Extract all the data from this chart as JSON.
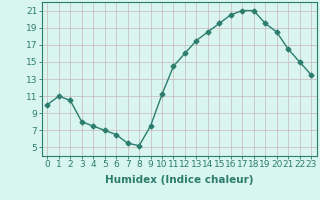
{
  "xlabel": "Humidex (Indice chaleur)",
  "x": [
    0,
    1,
    2,
    3,
    4,
    5,
    6,
    7,
    8,
    9,
    10,
    11,
    12,
    13,
    14,
    15,
    16,
    17,
    18,
    19,
    20,
    21,
    22,
    23
  ],
  "y": [
    10.0,
    11.0,
    10.5,
    8.0,
    7.5,
    7.0,
    6.5,
    5.5,
    5.2,
    7.5,
    11.2,
    14.5,
    16.0,
    17.5,
    18.5,
    19.5,
    20.5,
    21.0,
    21.0,
    19.5,
    18.5,
    16.5,
    15.0,
    13.5
  ],
  "line_color": "#2d7d6e",
  "marker": "D",
  "marker_size": 2.5,
  "bg_color": "#d8f5f0",
  "grid_color": "#c8b8b8",
  "ylim": [
    4,
    22
  ],
  "xlim": [
    -0.5,
    23.5
  ],
  "yticks": [
    5,
    7,
    9,
    11,
    13,
    15,
    17,
    19,
    21
  ],
  "xticks": [
    0,
    1,
    2,
    3,
    4,
    5,
    6,
    7,
    8,
    9,
    10,
    11,
    12,
    13,
    14,
    15,
    16,
    17,
    18,
    19,
    20,
    21,
    22,
    23
  ],
  "xlabel_fontsize": 7.5,
  "tick_fontsize": 6.5,
  "line_width": 1.0
}
